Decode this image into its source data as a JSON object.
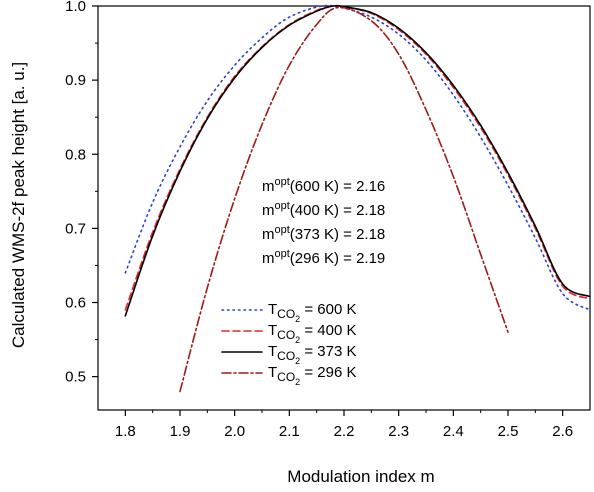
{
  "chart_data": {
    "type": "line",
    "xlabel": "Modulation index m",
    "ylabel": "Calculated WMS-2f peak height [a. u.]",
    "xlim": [
      1.75,
      2.65
    ],
    "ylim": [
      0.455,
      1.0
    ],
    "xticks": [
      "1.8",
      "1.9",
      "2.0",
      "2.1",
      "2.2",
      "2.3",
      "2.4",
      "2.5",
      "2.6"
    ],
    "yticks": [
      "0.5",
      "0.6",
      "0.7",
      "0.8",
      "0.9",
      "1.0"
    ],
    "grid": false,
    "legend_position": "lower-left",
    "annotations": [
      {
        "base": "m",
        "sup": "opt",
        "rest": "(600 K) = 2.16"
      },
      {
        "base": "m",
        "sup": "opt",
        "rest": "(400 K) = 2.18"
      },
      {
        "base": "m",
        "sup": "opt",
        "rest": "(373 K) = 2.18"
      },
      {
        "base": "m",
        "sup": "opt",
        "rest": "(296 K) = 2.19"
      }
    ],
    "series": [
      {
        "legend": {
          "base": "T",
          "sub1": "CO",
          "sub2": "2",
          "rest": " = 600 K"
        },
        "color": "#2a3fd6",
        "style": "dotted",
        "x": [
          1.8,
          1.85,
          1.9,
          1.95,
          2.0,
          2.05,
          2.1,
          2.16,
          2.2,
          2.25,
          2.3,
          2.35,
          2.4,
          2.45,
          2.5,
          2.55,
          2.6,
          2.65
        ],
        "y": [
          0.64,
          0.735,
          0.81,
          0.872,
          0.92,
          0.957,
          0.985,
          1.0,
          0.997,
          0.985,
          0.962,
          0.927,
          0.88,
          0.823,
          0.758,
          0.687,
          0.612,
          0.59
        ]
      },
      {
        "legend": {
          "base": "T",
          "sub1": "CO",
          "sub2": "2",
          "rest": " = 400 K"
        },
        "color": "#e0262e",
        "style": "dashed",
        "x": [
          1.8,
          1.85,
          1.9,
          1.95,
          2.0,
          2.05,
          2.1,
          2.15,
          2.18,
          2.2,
          2.25,
          2.3,
          2.35,
          2.4,
          2.45,
          2.5,
          2.55,
          2.6,
          2.65
        ],
        "y": [
          0.59,
          0.695,
          0.78,
          0.85,
          0.905,
          0.945,
          0.975,
          0.994,
          1.0,
          0.999,
          0.99,
          0.968,
          0.935,
          0.89,
          0.836,
          0.772,
          0.7,
          0.622,
          0.605
        ]
      },
      {
        "legend": {
          "base": "T",
          "sub1": "CO",
          "sub2": "2",
          "rest": " = 373 K"
        },
        "color": "#000000",
        "style": "solid",
        "x": [
          1.8,
          1.85,
          1.9,
          1.95,
          2.0,
          2.05,
          2.1,
          2.15,
          2.18,
          2.2,
          2.25,
          2.3,
          2.35,
          2.4,
          2.45,
          2.5,
          2.55,
          2.6,
          2.65
        ],
        "y": [
          0.582,
          0.69,
          0.777,
          0.848,
          0.903,
          0.944,
          0.974,
          0.993,
          1.0,
          0.999,
          0.991,
          0.97,
          0.937,
          0.893,
          0.839,
          0.775,
          0.703,
          0.625,
          0.608
        ]
      },
      {
        "legend": {
          "base": "T",
          "sub1": "CO",
          "sub2": "2",
          "rest": " = 296 K"
        },
        "color": "#9b1b1b",
        "style": "dashdot",
        "x": [
          1.9,
          1.95,
          2.0,
          2.05,
          2.1,
          2.15,
          2.19,
          2.25,
          2.3,
          2.35,
          2.4,
          2.45,
          2.5
        ],
        "y": [
          0.48,
          0.62,
          0.74,
          0.84,
          0.92,
          0.975,
          0.998,
          0.98,
          0.935,
          0.86,
          0.77,
          0.665,
          0.56
        ]
      }
    ]
  }
}
